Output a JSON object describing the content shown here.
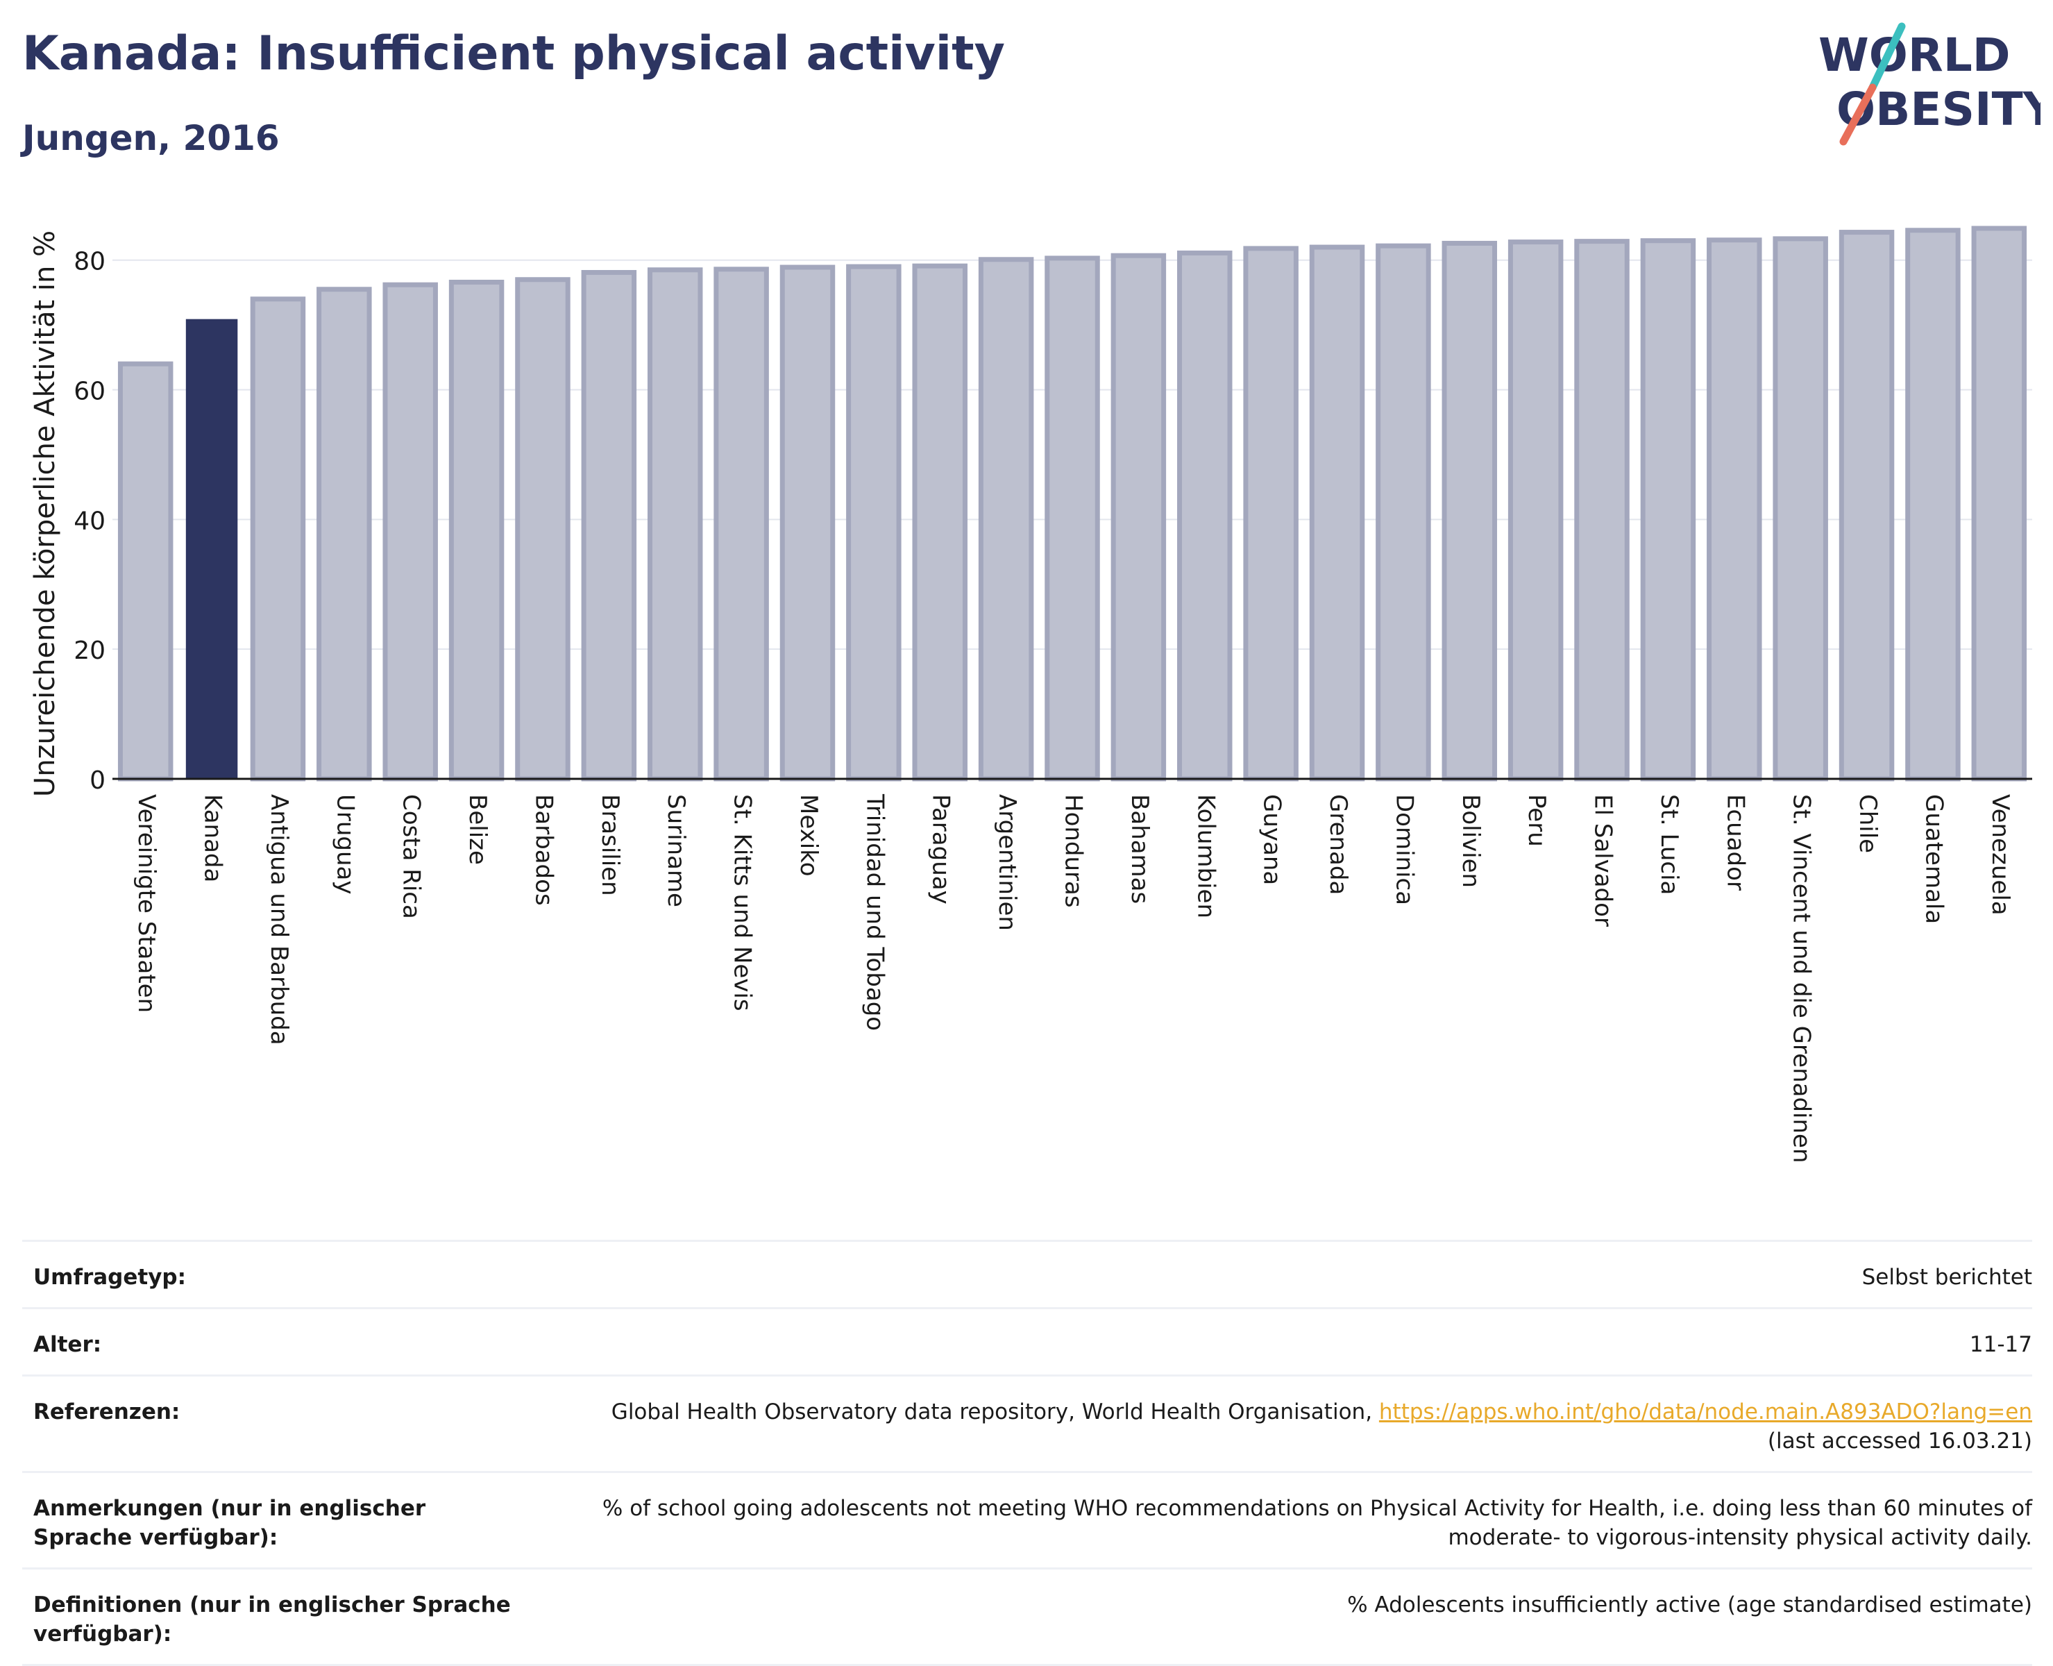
{
  "header": {
    "title": "Kanada: Insufficient physical activity",
    "subtitle": "Jungen, 2016"
  },
  "logo": {
    "line1": "WORLD",
    "line2": "OBESITY",
    "colors": {
      "text": "#2d3561",
      "slash_top": "#3cbfbf",
      "slash_bottom": "#e86f5a"
    }
  },
  "chart_data": {
    "type": "bar",
    "ylabel": "Unzureichende körperliche Aktivität in %",
    "xlabel": "",
    "ylim": [
      0,
      88
    ],
    "yticks": [
      0,
      20,
      40,
      60,
      80
    ],
    "grid": true,
    "highlight": "Kanada",
    "colors": {
      "bar": "#bdc0cf",
      "bar_border": "#a3a7bd",
      "highlight": "#2d3561",
      "grid": "#e3e6ee"
    },
    "categories": [
      "Vereinigte Staaten",
      "Kanada",
      "Antigua und Barbuda",
      "Uruguay",
      "Costa Rica",
      "Belize",
      "Barbados",
      "Brasilien",
      "Suriname",
      "St. Kitts und Nevis",
      "Mexiko",
      "Trinidad und Tobago",
      "Paraguay",
      "Argentinien",
      "Honduras",
      "Bahamas",
      "Kolumbien",
      "Guyana",
      "Grenada",
      "Dominica",
      "Bolivien",
      "Peru",
      "El Salvador",
      "St. Lucia",
      "Ecuador",
      "St. Vincent und die Grenadinen",
      "Chile",
      "Guatemala",
      "Venezuela"
    ],
    "values": [
      64.0,
      70.8,
      74.0,
      75.5,
      76.2,
      76.6,
      77.0,
      78.1,
      78.5,
      78.6,
      78.9,
      79.0,
      79.1,
      80.1,
      80.3,
      80.7,
      81.1,
      81.8,
      82.0,
      82.2,
      82.6,
      82.8,
      82.9,
      83.0,
      83.1,
      83.3,
      84.3,
      84.6,
      84.9
    ]
  },
  "meta": {
    "survey_type": {
      "label": "Umfragetyp:",
      "value": "Selbst berichtet"
    },
    "age": {
      "label": "Alter:",
      "value": "11-17"
    },
    "references": {
      "label": "Referenzen:",
      "text": "Global Health Observatory data repository, World Health Organisation, ",
      "link": "https://apps.who.int/gho/data/node.main.A893ADO?lang=en",
      "accessed": "(last accessed 16.03.21)"
    },
    "notes": {
      "label": "Anmerkungen (nur in englischer Sprache verfügbar):",
      "value": "% of school going adolescents not meeting WHO recommendations on Physical Activity for Health, i.e. doing less than 60 minutes of moderate- to vigorous-intensity physical activity daily."
    },
    "definitions": {
      "label": "Definitionen (nur in englischer Sprache verfügbar):",
      "value": "% Adolescents insufficiently active (age standardised estimate)"
    }
  }
}
